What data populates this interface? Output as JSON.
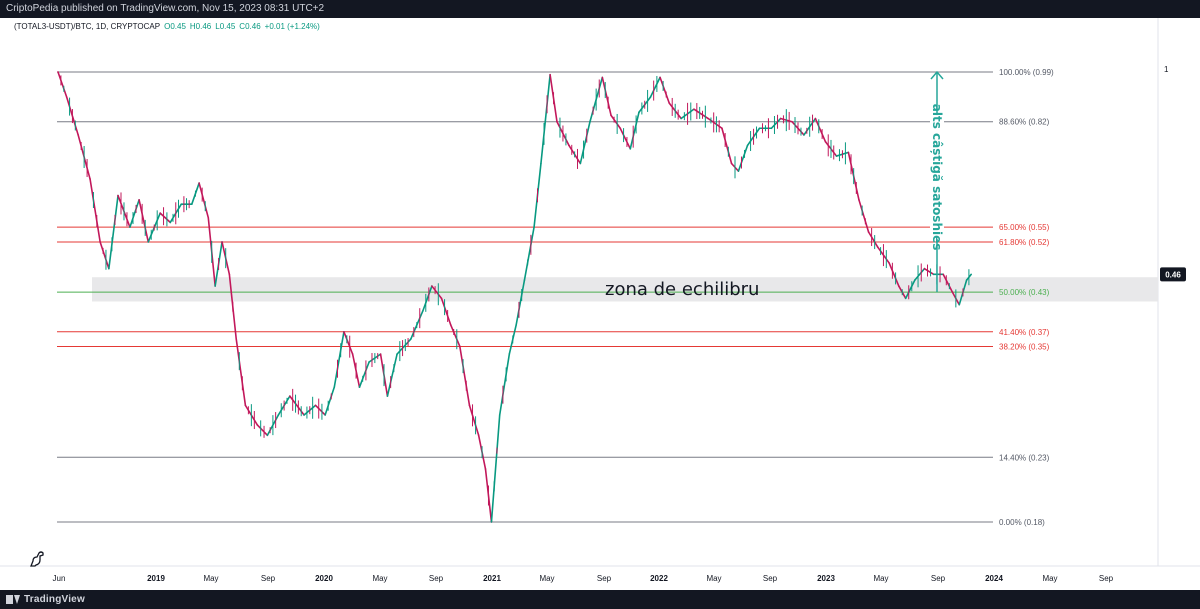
{
  "header": {
    "published_text": "CriptoPedia published on TradingView.com, Nov 15, 2023 08:31 UTC+2"
  },
  "legend": {
    "symbol": "(TOTAL3-USDT)/BTC, 1D, CRYPTOCAP",
    "open": "O0.45",
    "high": "H0.46",
    "low": "L0.45",
    "close": "C0.46",
    "change": "+0.01 (+1.24%)"
  },
  "footer": {
    "brand": "TradingView"
  },
  "colors": {
    "up": "#089981",
    "down": "#c2185b",
    "fib_gray": "#787b86",
    "fib_red": "#e53935",
    "fib_green": "#4caf50",
    "zone": "#e8e8ea",
    "arrow": "#26a69a",
    "price_badge": "#131722"
  },
  "chart_data": {
    "type": "line",
    "title": "",
    "xlabel": "",
    "ylabel": "",
    "y_scale": "log",
    "ylim": [
      0.17,
      1.1
    ],
    "y_tick_labels": [
      "1"
    ],
    "x_tick_labels": [
      "Jun",
      "2019",
      "May",
      "Sep",
      "2020",
      "May",
      "Sep",
      "2021",
      "May",
      "Sep",
      "2022",
      "May",
      "Sep",
      "2023",
      "May",
      "Sep",
      "2024",
      "May",
      "Sep"
    ],
    "last_price_label": "0.46",
    "series": [
      {
        "values": [
          [
            "2018-06-01",
            0.99
          ],
          [
            "2018-06-20",
            0.9
          ],
          [
            "2018-07-15",
            0.78
          ],
          [
            "2018-08-10",
            0.66
          ],
          [
            "2018-09-01",
            0.52
          ],
          [
            "2018-09-20",
            0.47
          ],
          [
            "2018-10-10",
            0.62
          ],
          [
            "2018-11-05",
            0.55
          ],
          [
            "2018-11-25",
            0.61
          ],
          [
            "2018-12-15",
            0.52
          ],
          [
            "2019-01-10",
            0.58
          ],
          [
            "2019-02-01",
            0.56
          ],
          [
            "2019-02-25",
            0.6
          ],
          [
            "2019-03-20",
            0.6
          ],
          [
            "2019-04-05",
            0.65
          ],
          [
            "2019-04-25",
            0.57
          ],
          [
            "2019-05-10",
            0.44
          ],
          [
            "2019-05-25",
            0.52
          ],
          [
            "2019-06-10",
            0.46
          ],
          [
            "2019-06-25",
            0.36
          ],
          [
            "2019-07-15",
            0.28
          ],
          [
            "2019-08-10",
            0.26
          ],
          [
            "2019-09-01",
            0.25
          ],
          [
            "2019-09-25",
            0.27
          ],
          [
            "2019-10-20",
            0.29
          ],
          [
            "2019-11-20",
            0.27
          ],
          [
            "2019-12-15",
            0.28
          ],
          [
            "2020-01-05",
            0.27
          ],
          [
            "2020-01-25",
            0.3
          ],
          [
            "2020-02-15",
            0.37
          ],
          [
            "2020-03-05",
            0.34
          ],
          [
            "2020-03-20",
            0.3
          ],
          [
            "2020-04-10",
            0.33
          ],
          [
            "2020-05-05",
            0.34
          ],
          [
            "2020-05-20",
            0.29
          ],
          [
            "2020-06-10",
            0.34
          ],
          [
            "2020-07-10",
            0.36
          ],
          [
            "2020-08-05",
            0.4
          ],
          [
            "2020-08-25",
            0.44
          ],
          [
            "2020-09-15",
            0.42
          ],
          [
            "2020-10-05",
            0.38
          ],
          [
            "2020-10-25",
            0.35
          ],
          [
            "2020-11-15",
            0.28
          ],
          [
            "2020-12-05",
            0.25
          ],
          [
            "2020-12-20",
            0.22
          ],
          [
            "2021-01-02",
            0.18
          ],
          [
            "2021-01-20",
            0.27
          ],
          [
            "2021-02-10",
            0.34
          ],
          [
            "2021-02-25",
            0.38
          ],
          [
            "2021-03-15",
            0.45
          ],
          [
            "2021-04-05",
            0.55
          ],
          [
            "2021-04-20",
            0.7
          ],
          [
            "2021-05-10",
            0.98
          ],
          [
            "2021-05-25",
            0.82
          ],
          [
            "2021-06-20",
            0.75
          ],
          [
            "2021-07-15",
            0.7
          ],
          [
            "2021-08-05",
            0.82
          ],
          [
            "2021-09-01",
            0.97
          ],
          [
            "2021-09-20",
            0.84
          ],
          [
            "2021-10-10",
            0.8
          ],
          [
            "2021-11-01",
            0.74
          ],
          [
            "2021-11-20",
            0.85
          ],
          [
            "2021-12-15",
            0.9
          ],
          [
            "2022-01-05",
            0.97
          ],
          [
            "2022-01-25",
            0.88
          ],
          [
            "2022-02-20",
            0.83
          ],
          [
            "2022-03-20",
            0.86
          ],
          [
            "2022-04-20",
            0.83
          ],
          [
            "2022-05-20",
            0.8
          ],
          [
            "2022-06-10",
            0.7
          ],
          [
            "2022-06-25",
            0.68
          ],
          [
            "2022-07-15",
            0.75
          ],
          [
            "2022-08-10",
            0.8
          ],
          [
            "2022-09-05",
            0.8
          ],
          [
            "2022-09-25",
            0.83
          ],
          [
            "2022-10-20",
            0.82
          ],
          [
            "2022-11-15",
            0.78
          ],
          [
            "2022-12-10",
            0.83
          ],
          [
            "2023-01-01",
            0.76
          ],
          [
            "2023-01-25",
            0.72
          ],
          [
            "2023-02-20",
            0.73
          ],
          [
            "2023-03-15",
            0.61
          ],
          [
            "2023-04-05",
            0.54
          ],
          [
            "2023-04-25",
            0.51
          ],
          [
            "2023-05-20",
            0.48
          ],
          [
            "2023-06-10",
            0.44
          ],
          [
            "2023-06-25",
            0.42
          ],
          [
            "2023-07-15",
            0.45
          ],
          [
            "2023-08-05",
            0.47
          ],
          [
            "2023-08-25",
            0.46
          ],
          [
            "2023-09-15",
            0.46
          ],
          [
            "2023-10-05",
            0.43
          ],
          [
            "2023-10-20",
            0.41
          ],
          [
            "2023-11-05",
            0.45
          ],
          [
            "2023-11-15",
            0.46
          ]
        ]
      }
    ],
    "fib_levels": [
      {
        "label": "100.00% (0.99)",
        "price": 0.99,
        "kind": "gray"
      },
      {
        "label": "88.60% (0.82)",
        "price": 0.82,
        "kind": "gray"
      },
      {
        "label": "65.00% (0.55)",
        "price": 0.55,
        "kind": "red"
      },
      {
        "label": "61.80% (0.52)",
        "price": 0.52,
        "kind": "red"
      },
      {
        "label": "50.00% (0.43)",
        "price": 0.43,
        "kind": "green"
      },
      {
        "label": "41.40% (0.37)",
        "price": 0.37,
        "kind": "red"
      },
      {
        "label": "38.20% (0.35)",
        "price": 0.35,
        "kind": "red"
      },
      {
        "label": "14.40% (0.23)",
        "price": 0.23,
        "kind": "gray"
      },
      {
        "label": "0.00% (0.18)",
        "price": 0.18,
        "kind": "gray"
      }
    ],
    "annotations": [
      {
        "text": "zona de echilibru",
        "zone_low": 0.415,
        "zone_high": 0.455
      },
      {
        "text": "alts câștigă satoshies",
        "arrow_from": 0.43,
        "arrow_to": 0.99
      }
    ]
  }
}
